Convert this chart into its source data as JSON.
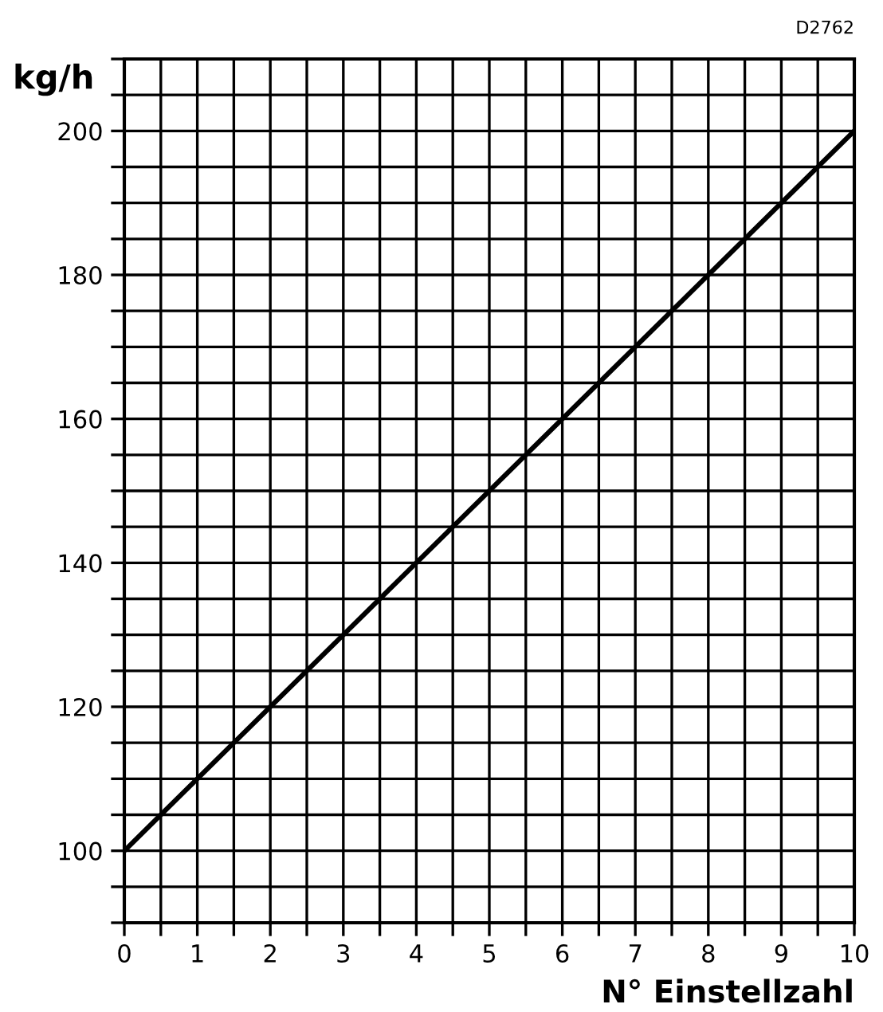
{
  "chart_data": {
    "type": "line",
    "xlabel": "N° Einstellzahl",
    "ylabel": "kg/h",
    "annotations": [
      "D2762"
    ],
    "x": [
      0,
      10
    ],
    "series": [
      {
        "color": "#000000",
        "values": [
          100,
          200
        ]
      }
    ],
    "xlim": [
      0,
      10
    ],
    "ylim": [
      90,
      210
    ],
    "xticks": [
      0,
      {
        "value": 0.5,
        "label": null
      },
      1,
      {
        "value": 1.5,
        "label": null
      },
      2,
      {
        "value": 2.5,
        "label": null
      },
      3,
      {
        "value": 3.5,
        "label": null
      },
      4,
      {
        "value": 4.5,
        "label": null
      },
      5,
      {
        "value": 5.5,
        "label": null
      },
      6,
      {
        "value": 6.5,
        "label": null
      },
      7,
      {
        "value": 7.5,
        "label": null
      },
      8,
      {
        "value": 8.5,
        "label": null
      },
      9,
      {
        "value": 9.5,
        "label": null
      },
      10
    ],
    "yticks": [
      {
        "value": 90,
        "label": null
      },
      {
        "value": 95,
        "label": null
      },
      100,
      {
        "value": 105,
        "label": null
      },
      {
        "value": 110,
        "label": null
      },
      {
        "value": 115,
        "label": null
      },
      120,
      {
        "value": 125,
        "label": null
      },
      {
        "value": 130,
        "label": null
      },
      {
        "value": 135,
        "label": null
      },
      140,
      {
        "value": 145,
        "label": null
      },
      {
        "value": 150,
        "label": null
      },
      {
        "value": 155,
        "label": null
      },
      160,
      {
        "value": 165,
        "label": null
      },
      {
        "value": 170,
        "label": null
      },
      {
        "value": 175,
        "label": null
      },
      180,
      {
        "value": 185,
        "label": null
      },
      {
        "value": 190,
        "label": null
      },
      {
        "value": 195,
        "label": null
      },
      200,
      {
        "value": 205,
        "label": null
      },
      {
        "value": 210,
        "label": null
      }
    ],
    "grid": true,
    "legend": false,
    "marker": "none",
    "line_style": "solid"
  }
}
